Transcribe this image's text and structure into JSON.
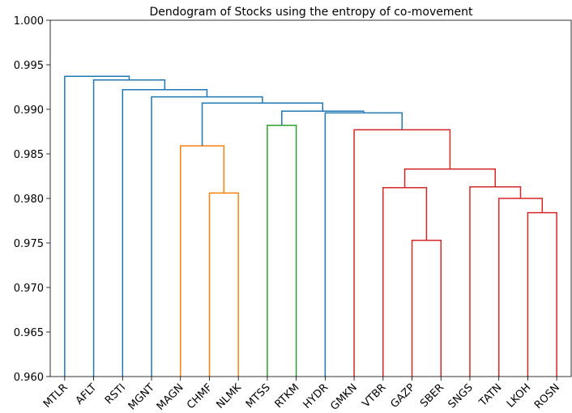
{
  "chart_data": {
    "type": "dendrogram",
    "title": "Dendogram of Stocks using the entropy of co-movement",
    "categories": [
      "MTLR",
      "AFLT",
      "RSTI",
      "MGNT",
      "MAGN",
      "CHMF",
      "NLMK",
      "MTSS",
      "RTKM",
      "HYDR",
      "GMKN",
      "VTBR",
      "GAZP",
      "SBER",
      "SNGS",
      "TATN",
      "LKOH",
      "ROSN"
    ],
    "links": [
      {
        "left": 12,
        "right": 13,
        "height": 0.9753,
        "color": "#d62728"
      },
      {
        "left": 11,
        "right": 18,
        "height": 0.9812,
        "color": "#d62728"
      },
      {
        "left": 16,
        "right": 17,
        "height": 0.9784,
        "color": "#d62728"
      },
      {
        "left": 15,
        "right": 20,
        "height": 0.98,
        "color": "#d62728"
      },
      {
        "left": 14,
        "right": 21,
        "height": 0.9813,
        "color": "#d62728"
      },
      {
        "left": 19,
        "right": 22,
        "height": 0.9833,
        "color": "#d62728"
      },
      {
        "left": 10,
        "right": 23,
        "height": 0.9877,
        "color": "#d62728"
      },
      {
        "left": 5,
        "right": 6,
        "height": 0.9806,
        "color": "#ff7f0e"
      },
      {
        "left": 4,
        "right": 25,
        "height": 0.9859,
        "color": "#ff7f0e"
      },
      {
        "left": 7,
        "right": 8,
        "height": 0.9882,
        "color": "#2ca02c"
      },
      {
        "left": 9,
        "right": 24,
        "height": 0.9896,
        "color": "#1f77b4"
      },
      {
        "left": 27,
        "right": 28,
        "height": 0.9898,
        "color": "#1f77b4"
      },
      {
        "left": 26,
        "right": 29,
        "height": 0.9907,
        "color": "#1f77b4"
      },
      {
        "left": 3,
        "right": 30,
        "height": 0.9914,
        "color": "#1f77b4"
      },
      {
        "left": 2,
        "right": 31,
        "height": 0.9922,
        "color": "#1f77b4"
      },
      {
        "left": 1,
        "right": 32,
        "height": 0.9933,
        "color": "#1f77b4"
      },
      {
        "left": 0,
        "right": 33,
        "height": 0.9937,
        "color": "#1f77b4"
      }
    ],
    "ylim": [
      0.96,
      1.0
    ],
    "yticks": [
      {
        "value": 0.96,
        "label": "0.960"
      },
      0.965,
      {
        "value": 0.97,
        "label": "0.970"
      },
      0.975,
      {
        "value": 0.98,
        "label": "0.980"
      },
      0.985,
      {
        "value": 0.99,
        "label": "0.990"
      },
      0.995,
      {
        "value": 1.0,
        "label": "1.000"
      }
    ]
  }
}
